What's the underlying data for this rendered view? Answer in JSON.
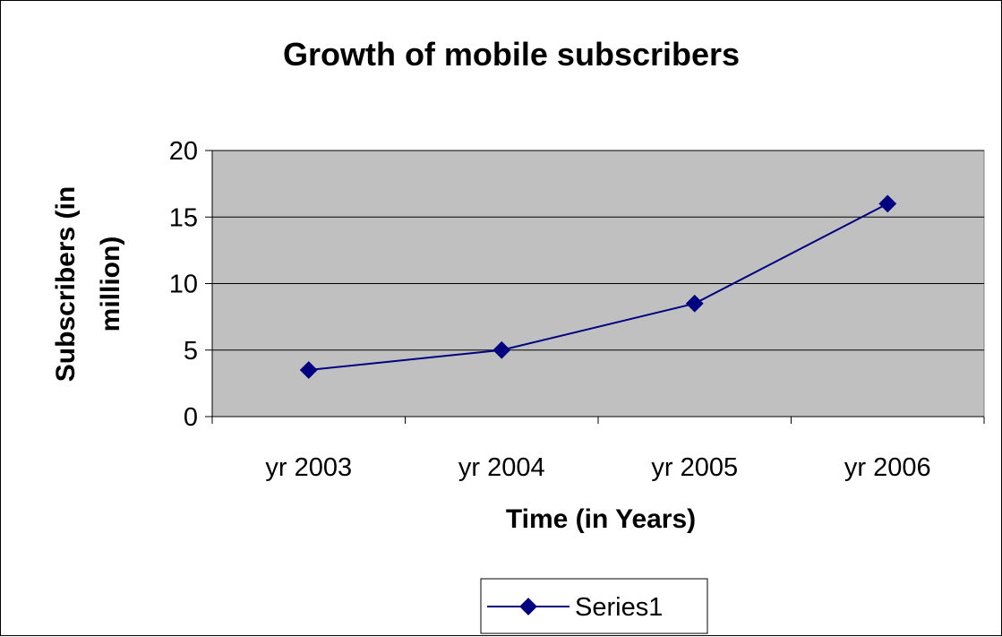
{
  "chart_data": {
    "type": "line",
    "title": "Growth of mobile subscribers",
    "xlabel": "Time (in Years)",
    "ylabel_lines": [
      "Subscribers (in",
      "million)"
    ],
    "categories": [
      "yr 2003",
      "yr 2004",
      "yr 2005",
      "yr 2006"
    ],
    "series": [
      {
        "name": "Series1",
        "values": [
          3.5,
          5,
          8.5,
          16
        ]
      }
    ],
    "ylim": [
      0,
      20
    ],
    "yticks": [
      0,
      5,
      10,
      15,
      20
    ],
    "grid": true,
    "legend_position": "bottom",
    "colors": {
      "series": "#000080",
      "plot_background": "#c0c0c0",
      "gridline": "#000000",
      "text": "#000000"
    }
  }
}
